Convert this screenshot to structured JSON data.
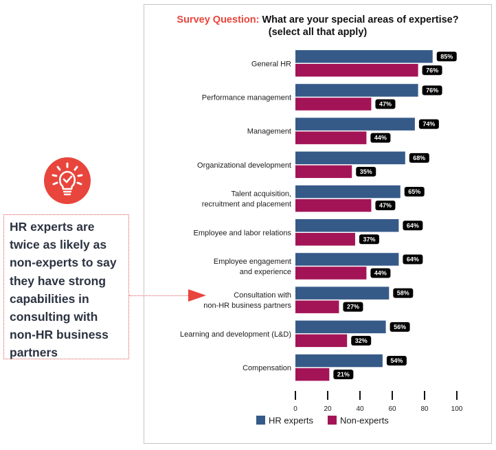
{
  "title": {
    "prefix": "Survey Question:",
    "question": "What are your special areas of expertise?",
    "subtitle": "(select all that apply)"
  },
  "callout": {
    "icon": "lightbulb-check-icon",
    "text": "HR experts are twice as likely as non-experts to say they have strong capabilities in consulting with non-HR business partners",
    "points_to": "Consultation with non-HR business partners"
  },
  "colors": {
    "hr_experts": "#365a88",
    "non_experts": "#a31456",
    "accent": "#e8453c",
    "label_bg": "#000000"
  },
  "chart_data": {
    "type": "bar",
    "orientation": "horizontal",
    "title": "Survey Question: What are your special areas of expertise? (select all that apply)",
    "xlabel": "",
    "ylabel": "",
    "xlim": [
      0,
      100
    ],
    "xticks": [
      0,
      20,
      40,
      60,
      80,
      100
    ],
    "grid": false,
    "legend_position": "bottom",
    "value_suffix": "%",
    "categories": [
      [
        "General HR"
      ],
      [
        "Performance management"
      ],
      [
        "Management"
      ],
      [
        "Organizational development"
      ],
      [
        "Talent acquisition,",
        "recruitment and placement"
      ],
      [
        "Employee and labor relations"
      ],
      [
        "Employee engagement",
        "and experience"
      ],
      [
        "Consultation with",
        "non-HR business partners"
      ],
      [
        "Learning and development (L&D)"
      ],
      [
        "Compensation"
      ]
    ],
    "series": [
      {
        "name": "HR experts",
        "color": "#365a88",
        "values": [
          85,
          76,
          74,
          68,
          65,
          64,
          64,
          58,
          56,
          54
        ]
      },
      {
        "name": "Non-experts",
        "color": "#a31456",
        "values": [
          76,
          47,
          44,
          35,
          47,
          37,
          44,
          27,
          32,
          21
        ]
      }
    ]
  }
}
